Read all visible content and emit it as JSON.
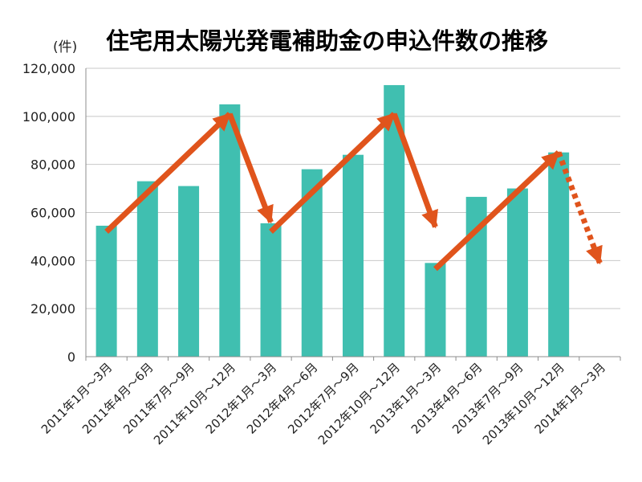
{
  "chart_data": {
    "type": "bar",
    "title": "住宅用太陽光発電補助金の申込件数の推移",
    "ylabel": "(件)",
    "xlabel": "",
    "ylim": [
      0,
      120000
    ],
    "yticks": [
      0,
      20000,
      40000,
      60000,
      80000,
      100000,
      120000
    ],
    "ytick_labels": [
      "0",
      "20,000",
      "40,000",
      "60,000",
      "80,000",
      "100,000",
      "120,000"
    ],
    "grid": true,
    "categories": [
      "2011年1月～3月",
      "2011年4月～6月",
      "2011年7月～9月",
      "2011年10月～12月",
      "2012年1月～3月",
      "2012年4月～6月",
      "2012年7月～9月",
      "2012年10月～12月",
      "2013年1月～3月",
      "2013年4月～6月",
      "2013年7月～9月",
      "2013年10月～12月",
      "2014年1月～3月"
    ],
    "values": [
      54500,
      73000,
      71000,
      105000,
      55500,
      78000,
      84000,
      113000,
      39000,
      66500,
      70000,
      85000,
      null
    ],
    "bar_color": "#40bfb0",
    "arrow_color": "#e0541c",
    "arrows": [
      {
        "from_index": 0,
        "from_value": 52000,
        "to_index": 3,
        "to_value": 101000,
        "style": "solid"
      },
      {
        "from_index": 3,
        "from_value": 101000,
        "to_index": 4,
        "to_value": 56000,
        "style": "solid"
      },
      {
        "from_index": 4,
        "from_value": 52000,
        "to_index": 7,
        "to_value": 101000,
        "style": "solid"
      },
      {
        "from_index": 7,
        "from_value": 101000,
        "to_index": 8,
        "to_value": 54000,
        "style": "solid"
      },
      {
        "from_index": 8,
        "from_value": 36500,
        "to_index": 11,
        "to_value": 85000,
        "style": "solid"
      },
      {
        "from_index": 11,
        "from_value": 85000,
        "to_index": 12,
        "to_value": 39000,
        "style": "dotted"
      }
    ]
  }
}
